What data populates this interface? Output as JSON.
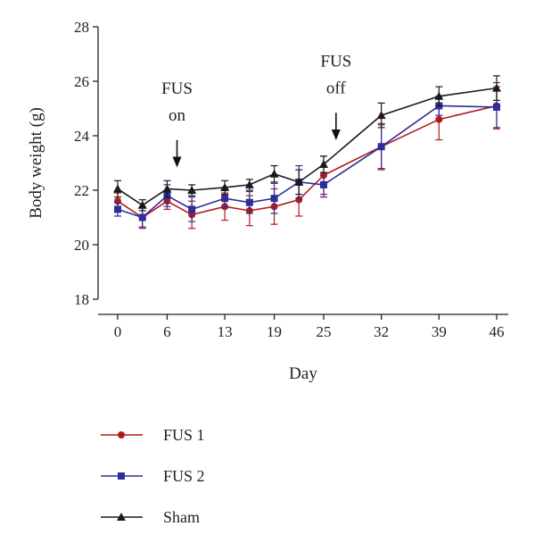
{
  "chart_data": {
    "type": "line",
    "x": [
      0,
      3,
      6,
      9,
      13,
      16,
      19,
      22,
      25,
      32,
      39,
      46
    ],
    "xticks": [
      "0",
      "6",
      "13",
      "19",
      "25",
      "32",
      "39",
      "46"
    ],
    "yticks": [
      "18",
      "20",
      "22",
      "24",
      "26",
      "28"
    ],
    "ylim": [
      18,
      28
    ],
    "xlabel": "Day",
    "ylabel": "Body weight (g)",
    "grid": false,
    "legend_position": "bottom",
    "annotations": [
      {
        "lines": [
          "FUS",
          "on"
        ],
        "x": 7.2,
        "arrow_from": 24.3,
        "arrow_to": 22.9
      },
      {
        "lines": [
          "FUS",
          "off"
        ],
        "x": 26.5,
        "arrow_from": 25.3,
        "arrow_to": 23.9
      }
    ],
    "series": [
      {
        "name": "FUS 1",
        "color": "#b01c1c",
        "marker": "circle",
        "values": [
          21.6,
          21.0,
          21.6,
          21.1,
          21.4,
          21.25,
          21.4,
          21.65,
          22.55,
          23.6,
          24.6,
          25.1
        ],
        "errors": [
          0.3,
          0.4,
          0.3,
          0.5,
          0.5,
          0.55,
          0.65,
          0.6,
          0.7,
          0.85,
          0.75,
          0.85
        ]
      },
      {
        "name": "FUS 2",
        "color": "#2e2e9a",
        "marker": "square",
        "values": [
          21.3,
          21.0,
          21.8,
          21.3,
          21.7,
          21.55,
          21.7,
          22.3,
          22.2,
          23.6,
          25.1,
          25.05
        ],
        "errors": [
          0.25,
          0.35,
          0.4,
          0.45,
          0.35,
          0.4,
          0.55,
          0.6,
          0.45,
          0.8,
          0.35,
          0.75
        ]
      },
      {
        "name": "Sham",
        "color": "#1a1a1a",
        "marker": "triangle",
        "values": [
          22.05,
          21.45,
          22.05,
          22.0,
          22.1,
          22.2,
          22.6,
          22.3,
          22.95,
          24.75,
          25.45,
          25.75
        ],
        "errors": [
          0.3,
          0.2,
          0.3,
          0.2,
          0.25,
          0.2,
          0.3,
          0.45,
          0.3,
          0.45,
          0.35,
          0.45
        ]
      }
    ]
  }
}
